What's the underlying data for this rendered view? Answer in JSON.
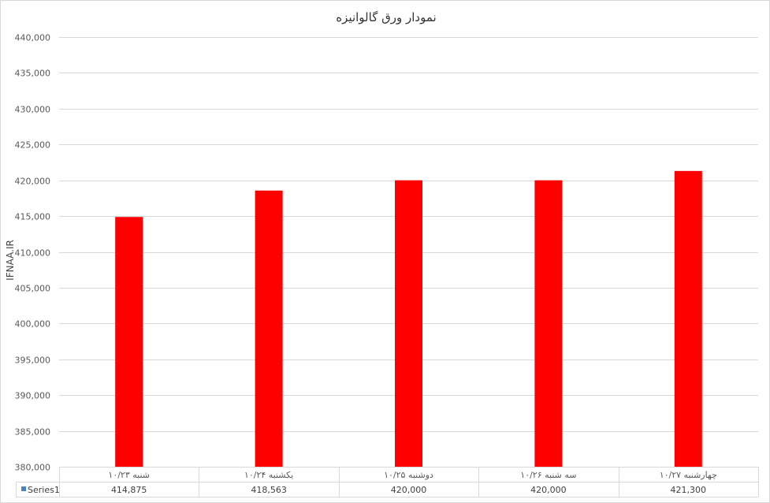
{
  "chart_data": {
    "type": "bar",
    "title": "نمودار ورق گالوانیزه",
    "categories": [
      "شنبه ۱۰/۲۳",
      "یکشنبه ۱۰/۲۴",
      "دوشنبه ۱۰/۲۵",
      "سه شنبه ۱۰/۲۶",
      "چهارشنبه ۱۰/۲۷"
    ],
    "series": [
      {
        "name": "Series1",
        "values": [
          414875,
          418563,
          420000,
          420000,
          421300
        ],
        "color": "#ff0000",
        "legend_color": "#4f81bd"
      }
    ],
    "value_labels": [
      "414,875",
      "418,563",
      "420,000",
      "420,000",
      "421,300"
    ],
    "ylim": [
      380000,
      440000
    ],
    "yticks": [
      "380,000",
      "385,000",
      "390,000",
      "395,000",
      "400,000",
      "405,000",
      "410,000",
      "415,000",
      "420,000",
      "425,000",
      "430,000",
      "435,000",
      "440,000"
    ],
    "grid": true,
    "legend": "data-table",
    "xlabel": "",
    "ylabel": ""
  },
  "watermark": "IFNAA.IR"
}
